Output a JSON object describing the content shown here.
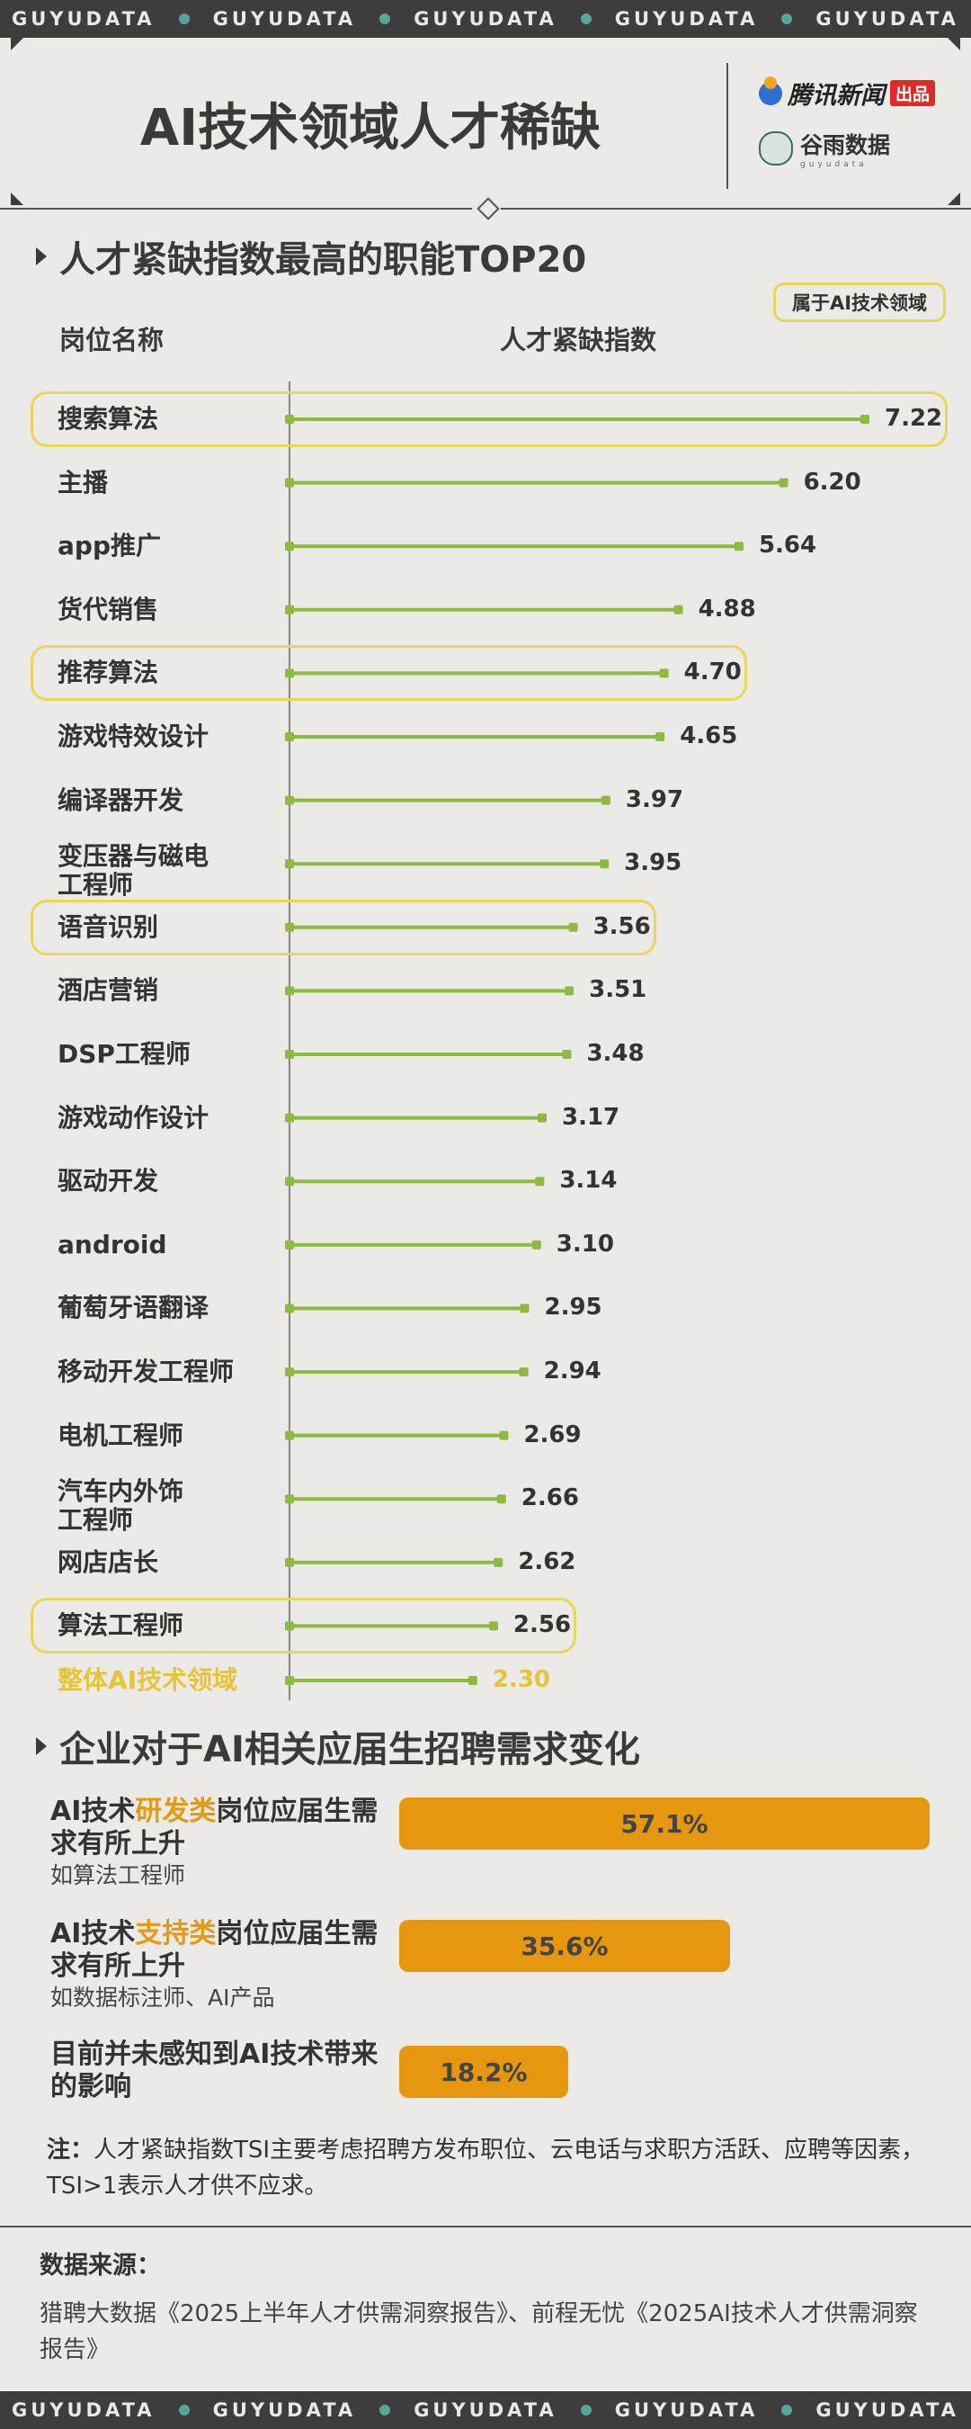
{
  "strip_text": [
    "GUYUDATA",
    "GUYUDATA",
    "GUYUDATA",
    "GUYUDATA",
    "GUYUDATA"
  ],
  "header": {
    "title": "AI技术领域人才稀缺",
    "brand1_name": "腾讯新闻",
    "brand1_tag": "出品",
    "brand2_name": "谷雨数据",
    "brand2_sub": "guyudata"
  },
  "section1": {
    "title": "人才紧缺指数最高的职能TOP20",
    "legend": "属于AI技术领域",
    "col_job": "岗位名称",
    "col_index": "人才紧缺指数"
  },
  "colors": {
    "accent_green": "#8bbb40",
    "highlight_yellow": "#ead658",
    "overall_yellow": "#e6c43a",
    "bar_orange": "#e5980f",
    "strip_dark": "#3d3d3d",
    "strip_dot": "#55a59a"
  },
  "chart_data": {
    "type": "lollipop",
    "title": "人才紧缺指数最高的职能TOP20",
    "xlabel": "人才紧缺指数",
    "ylabel": "岗位名称",
    "categories": [
      "搜索算法",
      "主播",
      "app推广",
      "货代销售",
      "推荐算法",
      "游戏特效设计",
      "编译器开发",
      "变压器与磁电工程师",
      "语音识别",
      "酒店营销",
      "DSP工程师",
      "游戏动作设计",
      "驱动开发",
      "android",
      "葡萄牙语翻译",
      "移动开发工程师",
      "电机工程师",
      "汽车内外饰工程师",
      "网店店长",
      "算法工程师",
      "整体AI技术领域"
    ],
    "display_labels": [
      "搜索算法",
      "主播",
      "app推广",
      "货代销售",
      "推荐算法",
      "游戏特效设计",
      "编译器开发",
      "变压器与磁电\n工程师",
      "语音识别",
      "酒店营销",
      "DSP工程师",
      "游戏动作设计",
      "驱动开发",
      "android",
      "葡萄牙语翻译",
      "移动开发工程师",
      "电机工程师",
      "汽车内外饰\n工程师",
      "网店店长",
      "算法工程师",
      "整体AI技术领域"
    ],
    "values": [
      7.22,
      6.2,
      5.64,
      4.88,
      4.7,
      4.65,
      3.97,
      3.95,
      3.56,
      3.51,
      3.48,
      3.17,
      3.14,
      3.1,
      2.95,
      2.94,
      2.69,
      2.66,
      2.62,
      2.56,
      2.3
    ],
    "value_labels": [
      "7.22",
      "6.20",
      "5.64",
      "4.88",
      "4.70",
      "4.65",
      "3.97",
      "3.95",
      "3.56",
      "3.51",
      "3.48",
      "3.17",
      "3.14",
      "3.10",
      "2.95",
      "2.94",
      "2.69",
      "2.66",
      "2.62",
      "2.56",
      "2.30"
    ],
    "ai_field": [
      true,
      false,
      false,
      false,
      true,
      false,
      false,
      false,
      true,
      false,
      false,
      false,
      false,
      false,
      false,
      false,
      false,
      false,
      false,
      true,
      false
    ],
    "overall_row": 20,
    "xlim": [
      0,
      7.22
    ],
    "grid": false
  },
  "section2": {
    "title": "企业对于AI相关应届生招聘需求变化",
    "bar_chart": {
      "type": "bar",
      "categories": [
        "AI技术研发类岗位应届生需求有所上升",
        "AI技术支持类岗位应届生需求有所上升",
        "目前并未感知到AI技术带来的影响"
      ],
      "values": [
        57.1,
        35.6,
        18.2
      ],
      "value_labels": [
        "57.1%",
        "35.6%",
        "18.2%"
      ],
      "xlim": [
        0,
        57.1
      ]
    },
    "rows": [
      {
        "pre": "AI技术",
        "accent": "研发类",
        "post": "岗位应届生需求有所上升",
        "sub": "如算法工程师"
      },
      {
        "pre": "AI技术",
        "accent": "支持类",
        "post": "岗位应届生需求有所上升",
        "sub": "如数据标注师、AI产品"
      },
      {
        "pre": "目前并未感知到AI技术带来的影响",
        "accent": "",
        "post": "",
        "sub": ""
      }
    ]
  },
  "note": {
    "label": "注：",
    "text": "人才紧缺指数TSI主要考虑招聘方发布职位、云电话与求职方活跃、应聘等因素，TSI>1表示人才供不应求。"
  },
  "source": {
    "title": "数据来源：",
    "text": "猎聘大数据《2025上半年人才供需洞察报告》、前程无忧《2025AI技术人才供需洞察报告》"
  }
}
